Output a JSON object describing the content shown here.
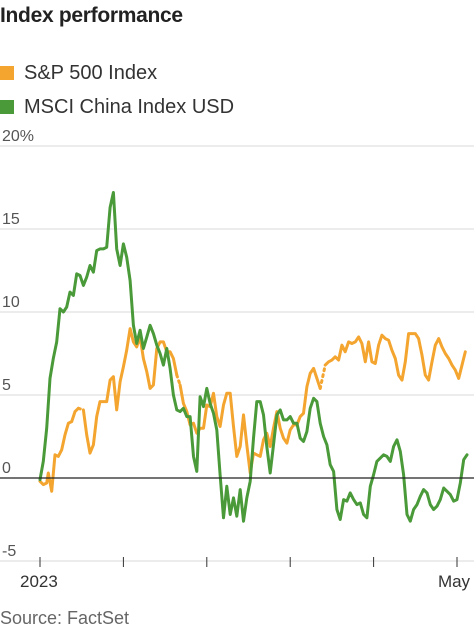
{
  "chart_data": {
    "type": "line",
    "title": "Index performance",
    "source": "Source: FactSet",
    "ylim": [
      -5,
      20
    ],
    "y_ticks": [
      {
        "value": 20,
        "label": "20%"
      },
      {
        "value": 15,
        "label": "15"
      },
      {
        "value": 10,
        "label": "10"
      },
      {
        "value": 5,
        "label": "5"
      },
      {
        "value": 0,
        "label": "0"
      },
      {
        "value": -5,
        "label": "-5"
      }
    ],
    "x_ticks": [
      {
        "value": 0,
        "label": "2023"
      },
      {
        "value": 5,
        "label": ""
      },
      {
        "value": 10,
        "label": ""
      },
      {
        "value": 15,
        "label": ""
      },
      {
        "value": 20,
        "label": ""
      },
      {
        "value": 25,
        "label": "May"
      }
    ],
    "xlim": [
      0,
      25.7
    ],
    "grid": true,
    "legend_position": "top-left",
    "series": [
      {
        "name": "S&P 500 Index",
        "color": "#f3a530",
        "points": [
          [
            0.0,
            -0.2
          ],
          [
            0.2,
            -0.4
          ],
          [
            0.4,
            -0.3
          ],
          [
            0.5,
            0.3
          ],
          [
            0.7,
            -0.8
          ],
          [
            0.9,
            1.4
          ],
          [
            1.1,
            1.3
          ],
          [
            1.3,
            1.7
          ],
          [
            1.5,
            2.6
          ],
          [
            1.7,
            3.3
          ],
          [
            1.9,
            3.4
          ],
          [
            2.1,
            4.0
          ],
          [
            2.3,
            4.2
          ],
          null,
          [
            2.6,
            4.1
          ],
          [
            2.8,
            2.6
          ],
          [
            3.0,
            1.5
          ],
          [
            3.2,
            2.0
          ],
          [
            3.4,
            3.7
          ],
          [
            3.6,
            4.6
          ],
          [
            3.8,
            4.6
          ],
          [
            4.0,
            4.6
          ],
          [
            4.2,
            5.9
          ],
          [
            4.4,
            6.1
          ],
          [
            4.6,
            4.1
          ],
          [
            4.8,
            5.8
          ],
          [
            5.0,
            6.7
          ],
          [
            5.2,
            7.7
          ],
          [
            5.4,
            9.0
          ],
          [
            5.6,
            8.2
          ],
          [
            5.8,
            7.9
          ],
          [
            6.0,
            8.5
          ],
          [
            6.2,
            7.2
          ],
          [
            6.4,
            6.4
          ],
          [
            6.6,
            5.4
          ],
          [
            6.8,
            5.6
          ],
          [
            7.0,
            7.8
          ],
          [
            7.2,
            8.2
          ],
          [
            7.4,
            8.2
          ],
          [
            7.6,
            7.6
          ],
          [
            7.8,
            7.6
          ],
          [
            8.0,
            7.2
          ],
          [
            8.2,
            6.2
          ],
          null,
          [
            8.4,
            5.6
          ],
          [
            8.6,
            4.5
          ],
          [
            8.8,
            4.0
          ],
          [
            9.0,
            3.2
          ],
          [
            9.2,
            3.3
          ],
          [
            9.4,
            2.7
          ],
          [
            9.6,
            3.0
          ],
          [
            9.8,
            3.0
          ],
          [
            10.0,
            4.4
          ],
          [
            10.2,
            4.3
          ],
          [
            10.4,
            5.1
          ],
          [
            10.6,
            3.7
          ],
          [
            10.8,
            3.1
          ],
          [
            11.0,
            4.4
          ],
          [
            11.2,
            5.1
          ],
          [
            11.4,
            5.1
          ],
          [
            11.6,
            3.1
          ],
          [
            11.8,
            1.3
          ],
          [
            12.0,
            1.9
          ],
          [
            12.2,
            3.8
          ],
          [
            12.4,
            2.0
          ],
          [
            12.6,
            0.3
          ],
          [
            12.8,
            1.5
          ],
          [
            13.0,
            1.4
          ],
          [
            13.2,
            1.3
          ],
          [
            13.4,
            2.3
          ],
          [
            13.6,
            2.7
          ],
          [
            13.8,
            1.9
          ],
          [
            14.0,
            3.0
          ],
          [
            14.2,
            4.0
          ],
          [
            14.4,
            3.0
          ],
          [
            14.6,
            2.4
          ],
          [
            14.8,
            2.1
          ],
          [
            15.0,
            2.9
          ],
          [
            15.2,
            3.2
          ],
          [
            15.4,
            3.2
          ],
          [
            15.6,
            3.7
          ],
          [
            15.8,
            3.9
          ],
          [
            16.0,
            5.5
          ],
          [
            16.2,
            6.3
          ],
          [
            16.4,
            6.6
          ],
          [
            16.6,
            6.0
          ],
          [
            16.8,
            5.4
          ],
          null,
          [
            17.1,
            6.8
          ],
          [
            17.3,
            7.0
          ],
          [
            17.5,
            7.1
          ],
          [
            17.7,
            7.3
          ],
          [
            17.9,
            7.1
          ],
          [
            18.1,
            8.0
          ],
          [
            18.3,
            7.6
          ],
          [
            18.5,
            8.2
          ],
          [
            18.7,
            8.1
          ],
          [
            18.9,
            8.2
          ],
          [
            19.1,
            8.5
          ],
          [
            19.3,
            8.1
          ],
          [
            19.5,
            7.0
          ],
          [
            19.7,
            8.2
          ],
          [
            19.9,
            7.0
          ],
          [
            20.1,
            6.9
          ],
          [
            20.3,
            8.0
          ],
          [
            20.5,
            8.6
          ],
          [
            20.7,
            8.4
          ],
          [
            20.9,
            8.3
          ],
          [
            21.1,
            7.7
          ],
          [
            21.3,
            7.2
          ],
          [
            21.5,
            6.2
          ],
          [
            21.7,
            5.9
          ],
          [
            21.9,
            7.0
          ],
          [
            22.1,
            8.7
          ],
          [
            22.3,
            8.7
          ],
          [
            22.5,
            8.7
          ],
          [
            22.7,
            8.4
          ],
          [
            22.9,
            7.4
          ],
          [
            23.1,
            6.2
          ],
          [
            23.3,
            5.9
          ],
          [
            23.5,
            7.0
          ],
          [
            23.7,
            8.0
          ],
          [
            23.9,
            8.4
          ],
          [
            24.1,
            7.9
          ],
          [
            24.3,
            7.5
          ],
          [
            24.5,
            7.2
          ],
          [
            24.7,
            6.8
          ],
          [
            24.9,
            6.5
          ],
          [
            25.1,
            6.0
          ],
          [
            25.3,
            6.8
          ],
          [
            25.5,
            7.6
          ]
        ]
      },
      {
        "name": "MSCI China Index USD",
        "color": "#4a9a3a",
        "points": [
          [
            0.0,
            -0.1
          ],
          [
            0.2,
            1.0
          ],
          [
            0.4,
            3.0
          ],
          [
            0.6,
            6.0
          ],
          [
            0.8,
            7.2
          ],
          [
            1.0,
            8.2
          ],
          [
            1.2,
            10.2
          ],
          [
            1.4,
            10.0
          ],
          [
            1.6,
            10.3
          ],
          [
            1.8,
            11.2
          ],
          [
            2.0,
            11.0
          ],
          [
            2.2,
            12.3
          ],
          [
            2.4,
            12.2
          ],
          [
            2.6,
            11.6
          ],
          [
            2.8,
            12.1
          ],
          [
            3.0,
            12.8
          ],
          [
            3.2,
            12.4
          ],
          [
            3.4,
            13.7
          ],
          [
            3.6,
            13.8
          ],
          [
            3.8,
            13.8
          ],
          [
            4.0,
            13.9
          ],
          [
            4.2,
            16.3
          ],
          [
            4.4,
            17.2
          ],
          [
            4.6,
            13.8
          ],
          [
            4.8,
            12.8
          ],
          [
            5.0,
            14.1
          ],
          [
            5.2,
            13.3
          ],
          [
            5.4,
            11.9
          ],
          [
            5.6,
            9.2
          ],
          [
            5.8,
            8.1
          ],
          [
            6.0,
            8.9
          ],
          [
            6.2,
            7.8
          ],
          [
            6.4,
            8.5
          ],
          [
            6.6,
            9.2
          ],
          [
            6.8,
            8.7
          ],
          [
            7.0,
            8.0
          ],
          [
            7.2,
            7.5
          ],
          [
            7.4,
            6.8
          ],
          [
            7.6,
            7.8
          ],
          [
            7.8,
            6.6
          ],
          [
            8.0,
            5.0
          ],
          [
            8.2,
            4.1
          ],
          [
            8.4,
            4.0
          ],
          [
            8.6,
            4.2
          ],
          [
            8.8,
            3.7
          ],
          [
            9.0,
            3.7
          ],
          [
            9.2,
            1.3
          ],
          [
            9.4,
            0.4
          ],
          [
            9.6,
            4.9
          ],
          [
            9.8,
            4.3
          ],
          [
            10.0,
            5.4
          ],
          [
            10.2,
            4.5
          ],
          [
            10.4,
            3.9
          ],
          [
            10.6,
            2.9
          ],
          [
            10.8,
            0.2
          ],
          [
            11.0,
            -2.4
          ],
          [
            11.2,
            -0.5
          ],
          [
            11.4,
            -2.2
          ],
          [
            11.6,
            -1.2
          ],
          [
            11.8,
            -2.3
          ],
          [
            12.0,
            -0.7
          ],
          [
            12.2,
            -2.6
          ],
          [
            12.4,
            -1.2
          ],
          [
            12.6,
            -0.2
          ],
          [
            12.8,
            2.4
          ],
          [
            13.0,
            4.6
          ],
          [
            13.2,
            4.6
          ],
          [
            13.4,
            3.8
          ],
          [
            13.6,
            1.9
          ],
          [
            13.8,
            0.3
          ],
          [
            14.0,
            2.0
          ],
          [
            14.2,
            3.8
          ],
          [
            14.4,
            4.1
          ],
          [
            14.6,
            3.5
          ],
          [
            14.8,
            3.5
          ],
          [
            15.0,
            3.7
          ],
          [
            15.2,
            3.3
          ],
          [
            15.4,
            3.3
          ],
          [
            15.6,
            2.4
          ],
          [
            15.8,
            2.2
          ],
          [
            16.0,
            2.8
          ],
          [
            16.2,
            4.2
          ],
          [
            16.4,
            4.8
          ],
          [
            16.6,
            4.6
          ],
          [
            16.8,
            3.3
          ],
          [
            17.0,
            2.5
          ],
          [
            17.2,
            2.0
          ],
          [
            17.4,
            0.8
          ],
          [
            17.6,
            0.4
          ],
          [
            17.8,
            -1.9
          ],
          [
            18.0,
            -2.5
          ],
          [
            18.2,
            -1.3
          ],
          [
            18.4,
            -1.4
          ],
          [
            18.6,
            -0.9
          ],
          [
            18.8,
            -1.3
          ],
          [
            19.0,
            -1.6
          ],
          [
            19.2,
            -1.5
          ],
          [
            19.4,
            -2.2
          ],
          [
            19.6,
            -2.4
          ],
          [
            19.8,
            -0.5
          ],
          [
            20.0,
            0.2
          ],
          [
            20.2,
            1.0
          ],
          [
            20.4,
            1.2
          ],
          [
            20.6,
            1.4
          ],
          [
            20.8,
            1.3
          ],
          [
            21.0,
            1.0
          ],
          [
            21.2,
            1.9
          ],
          [
            21.4,
            2.3
          ],
          [
            21.6,
            1.6
          ],
          [
            21.8,
            0.2
          ],
          [
            22.0,
            -2.2
          ],
          [
            22.2,
            -2.6
          ],
          [
            22.4,
            -1.9
          ],
          [
            22.6,
            -1.6
          ],
          [
            22.8,
            -1.1
          ],
          [
            23.0,
            -0.7
          ],
          [
            23.2,
            -0.9
          ],
          [
            23.4,
            -1.6
          ],
          [
            23.6,
            -1.9
          ],
          [
            23.8,
            -1.7
          ],
          [
            24.0,
            -1.3
          ],
          [
            24.2,
            -0.6
          ],
          [
            24.4,
            -0.8
          ],
          [
            24.6,
            -1.0
          ],
          [
            24.8,
            -1.4
          ],
          [
            25.0,
            -1.3
          ],
          [
            25.2,
            -0.3
          ],
          [
            25.4,
            1.1
          ],
          [
            25.6,
            1.4
          ]
        ]
      }
    ]
  }
}
